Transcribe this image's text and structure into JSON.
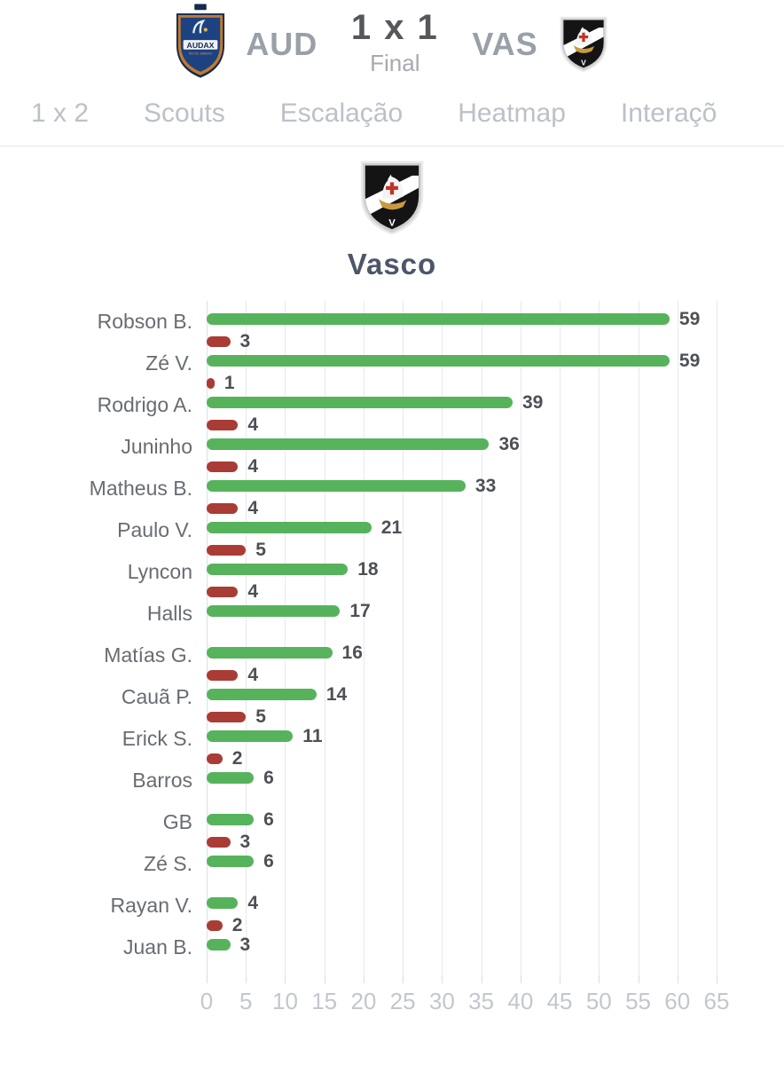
{
  "header": {
    "home": {
      "abbr": "AUD",
      "badge_icon": "audax-crest"
    },
    "score": "1 x 1",
    "status": "Final",
    "away": {
      "abbr": "VAS",
      "badge_icon": "vasco-crest"
    }
  },
  "tabs": [
    {
      "label": "1 x 2"
    },
    {
      "label": "Scouts"
    },
    {
      "label": "Escalação"
    },
    {
      "label": "Heatmap"
    },
    {
      "label": "Interaçõ"
    }
  ],
  "team_section": {
    "title": "Vasco",
    "crest_icon": "vasco-crest"
  },
  "colors": {
    "green_bar": "#56b35c",
    "red_bar": "#a93c35",
    "gridline": "#e6e9ed",
    "score_text": "#55575a",
    "tab_text": "#bcc1c8"
  },
  "chart_data": {
    "type": "bar",
    "orientation": "horizontal",
    "title": "Vasco",
    "categories": [
      "Robson B.",
      "Zé V.",
      "Rodrigo A.",
      "Juninho",
      "Matheus B.",
      "Paulo V.",
      "Lyncon",
      "Halls",
      "Matías G.",
      "Cauã P.",
      "Erick S.",
      "Barros",
      "GB",
      "Zé S.",
      "Rayan V.",
      "Juan B."
    ],
    "series": [
      {
        "name": "green",
        "color": "#56b35c",
        "values": [
          59,
          59,
          39,
          36,
          33,
          21,
          18,
          17,
          16,
          14,
          11,
          6,
          6,
          6,
          4,
          3
        ]
      },
      {
        "name": "red",
        "color": "#a93c35",
        "values": [
          3,
          1,
          4,
          4,
          4,
          5,
          4,
          null,
          4,
          5,
          2,
          null,
          3,
          null,
          2,
          null
        ]
      }
    ],
    "xlim": [
      0,
      65
    ],
    "xticks": [
      0,
      5,
      10,
      15,
      20,
      25,
      30,
      35,
      40,
      45,
      50,
      55,
      60,
      65
    ],
    "grid": true,
    "legend": "none"
  }
}
